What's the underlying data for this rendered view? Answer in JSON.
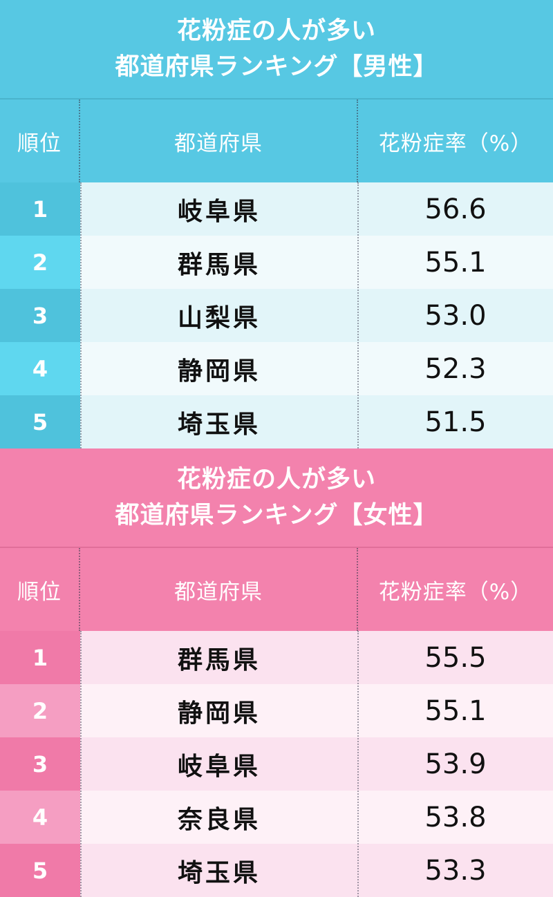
{
  "male": {
    "title_line1": "花粉症の人が多い",
    "title_line2": "都道府県ランキング【男性】",
    "headers": {
      "rank": "順位",
      "prefecture": "都道府県",
      "rate": "花粉症率（%）"
    },
    "rows": [
      {
        "rank": "1",
        "prefecture": "岐阜県",
        "rate": "56.6"
      },
      {
        "rank": "2",
        "prefecture": "群馬県",
        "rate": "55.1"
      },
      {
        "rank": "3",
        "prefecture": "山梨県",
        "rate": "53.0"
      },
      {
        "rank": "4",
        "prefecture": "静岡県",
        "rate": "52.3"
      },
      {
        "rank": "5",
        "prefecture": "埼玉県",
        "rate": "51.5"
      }
    ]
  },
  "female": {
    "title_line1": "花粉症の人が多い",
    "title_line2": "都道府県ランキング【女性】",
    "headers": {
      "rank": "順位",
      "prefecture": "都道府県",
      "rate": "花粉症率（%）"
    },
    "rows": [
      {
        "rank": "1",
        "prefecture": "群馬県",
        "rate": "55.5"
      },
      {
        "rank": "2",
        "prefecture": "静岡県",
        "rate": "55.1"
      },
      {
        "rank": "3",
        "prefecture": "岐阜県",
        "rate": "53.9"
      },
      {
        "rank": "4",
        "prefecture": "奈良県",
        "rate": "53.8"
      },
      {
        "rank": "5",
        "prefecture": "埼玉県",
        "rate": "53.3"
      }
    ]
  },
  "colors": {
    "male_accent": "#57c8e3",
    "female_accent": "#f382ad"
  }
}
